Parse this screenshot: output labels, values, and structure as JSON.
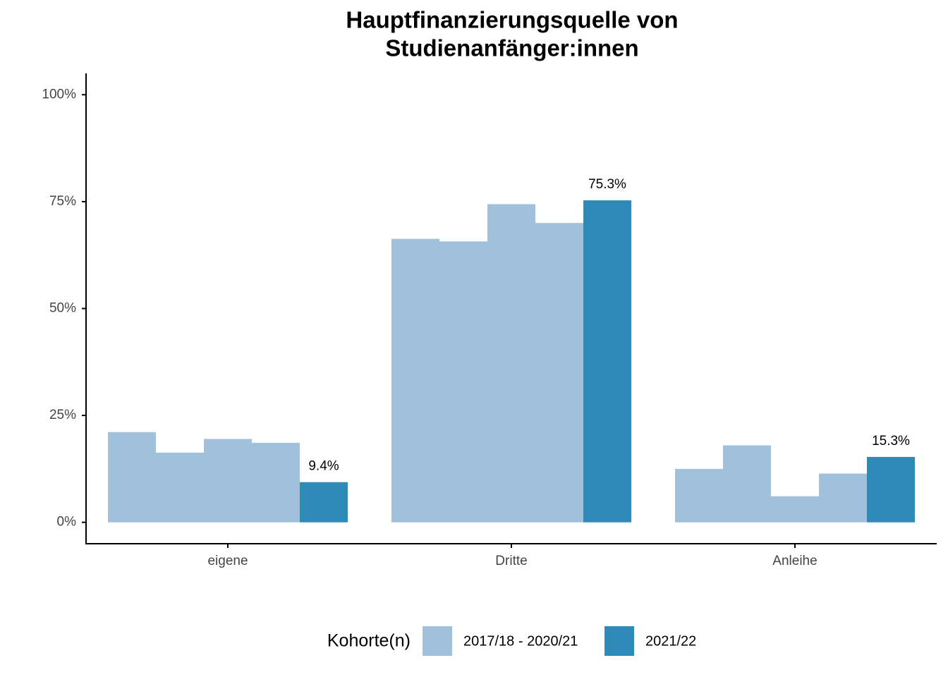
{
  "chart_data": {
    "type": "bar",
    "title": "Hauptfinanzierungsquelle von",
    "subtitle": "Studienanfänger:innen",
    "categories": [
      "eigene",
      "Dritte",
      "Anleihe"
    ],
    "series": [
      {
        "name": "2017/18 - 2020/21",
        "color": "#a1c0dc",
        "values": [
          [
            21.1,
            16.3,
            19.5,
            18.6
          ],
          [
            66.3,
            65.7,
            74.4,
            70.0
          ],
          [
            12.5,
            18.0,
            6.1,
            11.4
          ]
        ]
      },
      {
        "name": "2021/22",
        "color": "#2e8ab7",
        "values": [
          9.4,
          75.3,
          15.3
        ],
        "value_labels": [
          "9.4%",
          "75.3%",
          "15.3%"
        ]
      }
    ],
    "ylim": [
      -5,
      105
    ],
    "yticks": [
      {
        "value": 0,
        "label": "0%"
      },
      {
        "value": 25,
        "label": "25%"
      },
      {
        "value": 50,
        "label": "50%"
      },
      {
        "value": 75,
        "label": "75%"
      },
      {
        "value": 100,
        "label": "100%"
      }
    ],
    "legend_title": "Kohorte(n)",
    "legend": "bottom",
    "grid": false
  }
}
